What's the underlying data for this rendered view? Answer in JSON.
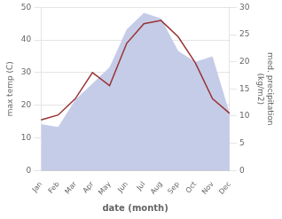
{
  "chart_data": {
    "type": "line",
    "categories": [
      "Jan",
      "Feb",
      "Mar",
      "Apr",
      "May",
      "Jun",
      "Jul",
      "Aug",
      "Sep",
      "Oct",
      "Nov",
      "Dec"
    ],
    "series": [
      {
        "type": "area",
        "color": "#c5cce8",
        "axis": "y2",
        "values": [
          8.5,
          8.0,
          13.0,
          16.0,
          19.0,
          26.0,
          29.0,
          28.0,
          22.0,
          20.0,
          21.0,
          10.5
        ]
      },
      {
        "type": "line",
        "color": "#993333",
        "values": [
          15.5,
          17.0,
          22.0,
          30.0,
          26.0,
          39.0,
          45.0,
          46.0,
          41.0,
          33.0,
          22.0,
          17.5
        ]
      }
    ],
    "xlabel": "date (month)",
    "ylabel": "max temp (C)",
    "y2label": "med. precipitation\n(kg/m2)",
    "ylim": [
      0,
      50
    ],
    "yticks": [
      0,
      10,
      20,
      30,
      40,
      50
    ],
    "y2lim": [
      0,
      30
    ],
    "y2ticks": [
      0,
      5,
      10,
      15,
      20,
      25,
      30
    ],
    "grid": true
  }
}
